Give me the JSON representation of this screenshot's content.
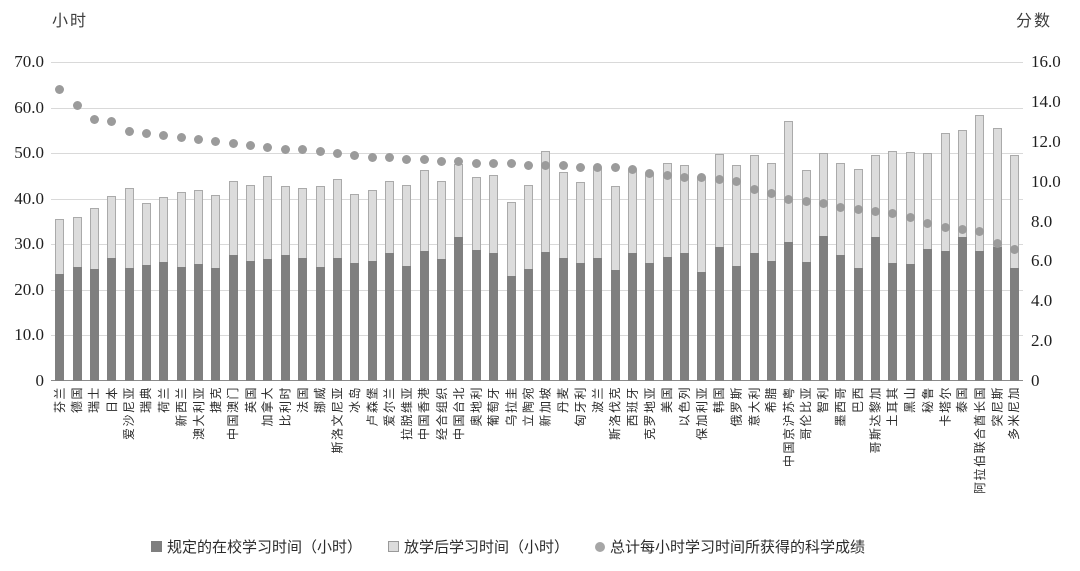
{
  "chart_data": {
    "type": "combo: stacked bar (left axis) + dot series (right axis)",
    "left_axis": {
      "label": "小时",
      "min": 0,
      "max": 70,
      "ticks": [
        "70.0",
        "60.0",
        "50.0",
        "40.0",
        "30.0",
        "20.0",
        "10.0",
        "0"
      ]
    },
    "right_axis": {
      "label": "分数",
      "min": 0,
      "max": 16,
      "ticks": [
        "16.0",
        "14.0",
        "12.0",
        "10.0",
        "8.0",
        "6.0",
        "4.0",
        "2.0",
        "0"
      ]
    },
    "grid": "horizontal gridlines every 10 hours",
    "legend_position": "bottom",
    "categories": [
      "芬兰",
      "德国",
      "瑞士",
      "日本",
      "爱沙尼亚",
      "瑞典",
      "荷兰",
      "新西兰",
      "澳大利亚",
      "捷克",
      "中国澳门",
      "英国",
      "加拿大",
      "比利时",
      "法国",
      "挪威",
      "斯洛文尼亚",
      "冰岛",
      "卢森堡",
      "爱尔兰",
      "拉脱维亚",
      "中国香港",
      "经合组织",
      "中国台北",
      "奥地利",
      "葡萄牙",
      "乌拉圭",
      "立陶宛",
      "新加坡",
      "丹麦",
      "匈牙利",
      "波兰",
      "斯洛伐克",
      "西班牙",
      "克罗地亚",
      "美国",
      "以色列",
      "保加利亚",
      "韩国",
      "俄罗斯",
      "意大利",
      "希腊",
      "中国京沪苏粤",
      "哥伦比亚",
      "智利",
      "墨西哥",
      "巴西",
      "哥斯达黎加",
      "土耳其",
      "黑山",
      "秘鲁",
      "卡塔尔",
      "泰国",
      "阿拉伯联合酋长国",
      "突尼斯",
      "多米尼加"
    ],
    "series": [
      {
        "name": "规定的在校学习时间（小时）",
        "type": "bar",
        "stack": true,
        "axis": "left",
        "color": "#7f7f7f",
        "values": [
          23.5,
          25.1,
          24.6,
          27.0,
          24.9,
          25.4,
          26.2,
          25.1,
          25.6,
          24.7,
          27.6,
          26.3,
          26.8,
          27.6,
          27.0,
          25.1,
          26.9,
          26.0,
          26.3,
          28.2,
          25.3,
          28.5,
          26.7,
          31.6,
          28.7,
          28.0,
          23.1,
          24.6,
          28.3,
          27.1,
          25.9,
          27.1,
          24.3,
          28.1,
          25.9,
          27.2,
          28.0,
          24.0,
          29.5,
          25.2,
          28.1,
          26.3,
          30.5,
          26.2,
          31.8,
          27.6,
          24.8,
          31.6,
          25.8,
          25.7,
          28.9,
          28.5,
          31.6,
          28.6,
          29.3,
          24.7
        ]
      },
      {
        "name": "放学后学习时间（小时）",
        "type": "bar",
        "stack": true,
        "axis": "left",
        "color": "#dcdcdc",
        "values": [
          12.0,
          11.0,
          13.3,
          13.5,
          17.4,
          13.7,
          14.2,
          16.4,
          16.4,
          16.1,
          16.3,
          16.8,
          18.2,
          15.3,
          15.4,
          17.7,
          17.4,
          15.0,
          15.7,
          15.7,
          17.7,
          17.7,
          17.3,
          16.0,
          16.0,
          17.2,
          16.2,
          18.4,
          22.2,
          18.7,
          17.8,
          19.7,
          18.4,
          18.1,
          19.6,
          20.6,
          19.4,
          20.7,
          20.3,
          22.3,
          21.4,
          21.5,
          26.5,
          20.0,
          18.2,
          20.2,
          21.7,
          17.9,
          24.6,
          24.5,
          21.1,
          25.9,
          23.5,
          29.8,
          26.3,
          24.8
        ]
      },
      {
        "name": "总计每小时学习时间所获得的科学成绩",
        "type": "dot",
        "axis": "right",
        "color": "#9b9b9b",
        "values": [
          14.6,
          13.8,
          13.1,
          13.0,
          12.5,
          12.4,
          12.3,
          12.2,
          12.1,
          12.0,
          11.9,
          11.8,
          11.7,
          11.6,
          11.6,
          11.5,
          11.4,
          11.3,
          11.2,
          11.2,
          11.1,
          11.1,
          11.0,
          11.0,
          10.9,
          10.9,
          10.9,
          10.8,
          10.8,
          10.8,
          10.7,
          10.7,
          10.7,
          10.6,
          10.4,
          10.3,
          10.2,
          10.2,
          10.1,
          10.0,
          9.6,
          9.4,
          9.1,
          9.0,
          8.9,
          8.7,
          8.6,
          8.5,
          8.4,
          8.2,
          7.9,
          7.7,
          7.6,
          7.5,
          6.9,
          6.6
        ]
      }
    ]
  },
  "colors": {
    "bar_school": "#7f7f7f",
    "bar_afterschool": "#dcdcdc",
    "bar_afterschool_border": "#aaaaaa",
    "dot": "#9b9b9b",
    "gridline": "#d9d9d9",
    "axis_line": "#8a8a8a",
    "text": "#2b2b2b",
    "background": "#ffffff"
  }
}
